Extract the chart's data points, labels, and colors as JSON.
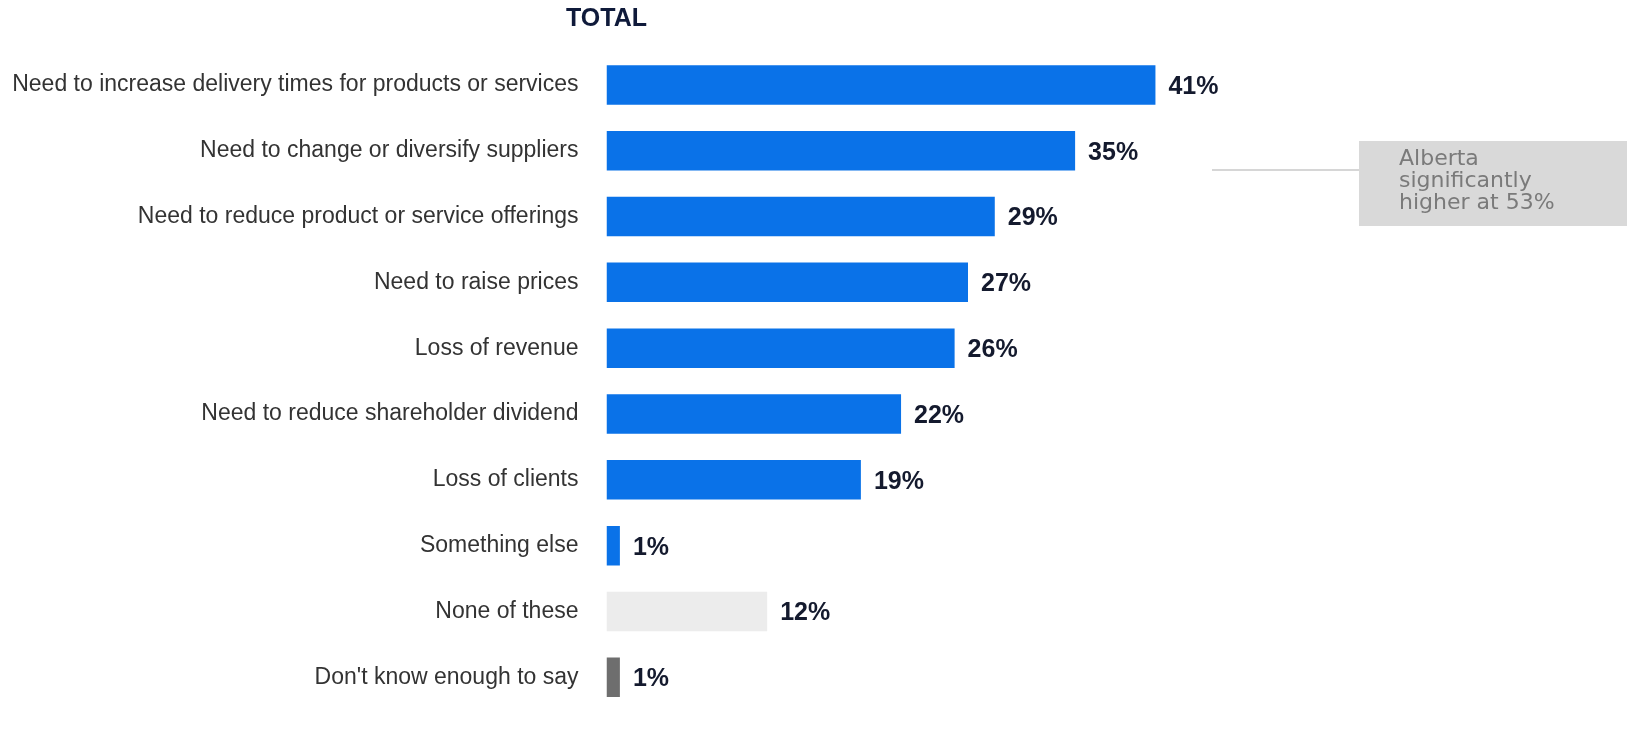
{
  "chart_data": {
    "type": "bar",
    "orientation": "horizontal",
    "title": "TOTAL",
    "categories": [
      "Need to increase delivery times for products or services",
      "Need to change or diversify suppliers",
      "Need to reduce product or service offerings",
      "Need to raise prices",
      "Loss of revenue",
      "Need to reduce shareholder dividend",
      "Loss of clients",
      "Something else",
      "None of these",
      "Don't know enough to say"
    ],
    "values": [
      41,
      35,
      29,
      27,
      26,
      22,
      19,
      1,
      12,
      1
    ],
    "colors": [
      "#0a72e8",
      "#0a72e8",
      "#0a72e8",
      "#0a72e8",
      "#0a72e8",
      "#0a72e8",
      "#0a72e8",
      "#0a72e8",
      "#ececec",
      "#6e6e6e"
    ],
    "value_labels": [
      "41%",
      "35%",
      "29%",
      "27%",
      "26%",
      "22%",
      "19%",
      "1%",
      "12%",
      "1%"
    ],
    "annotations": [
      "Alberta significantly higher at 53%"
    ],
    "grid": false,
    "legend": false
  }
}
